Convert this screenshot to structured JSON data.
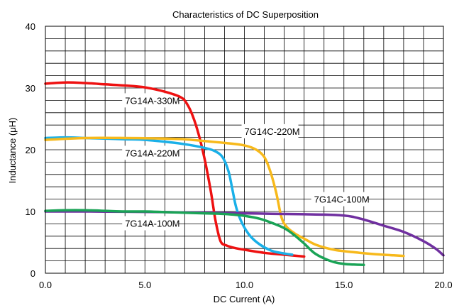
{
  "chart_data": {
    "type": "line",
    "title": "Characteristics of DC Superposition",
    "xlabel": "DC Current (A)",
    "ylabel": "Inductance (μH)",
    "xlim": [
      0,
      20
    ],
    "ylim": [
      0,
      40
    ],
    "grid": true,
    "legend": "none",
    "x_ticks": [
      {
        "value": 0,
        "label": "0.0"
      },
      {
        "value": 5,
        "label": "5.0"
      },
      {
        "value": 10,
        "label": "10.0"
      },
      {
        "value": 15,
        "label": "15.0"
      },
      {
        "value": 20,
        "label": "20.0"
      }
    ],
    "y_ticks": [
      {
        "value": 0,
        "label": "0"
      },
      {
        "value": 10,
        "label": "10"
      },
      {
        "value": 20,
        "label": "20"
      },
      {
        "value": 30,
        "label": "30"
      },
      {
        "value": 40,
        "label": "40"
      }
    ],
    "series": [
      {
        "name": "7G14A-330M",
        "color": "#ee1111",
        "points": [
          [
            0,
            30.7
          ],
          [
            1,
            30.9
          ],
          [
            2,
            30.8
          ],
          [
            3,
            30.6
          ],
          [
            4,
            30.4
          ],
          [
            5,
            30.1
          ],
          [
            6,
            29.4
          ],
          [
            6.8,
            28.5
          ],
          [
            7.1,
            27.5
          ],
          [
            7.4,
            25.5
          ],
          [
            7.7,
            22.5
          ],
          [
            8.0,
            18.5
          ],
          [
            8.3,
            13.5
          ],
          [
            8.55,
            8.5
          ],
          [
            8.8,
            5.2
          ],
          [
            9.1,
            4.5
          ],
          [
            9.5,
            4.1
          ],
          [
            10,
            3.8
          ],
          [
            11,
            3.3
          ],
          [
            12,
            3.0
          ],
          [
            13,
            2.7
          ]
        ],
        "label_value": [
          4.0,
          28.0
        ]
      },
      {
        "name": "7G14A-220M",
        "color": "#1ab0e8",
        "points": [
          [
            0,
            21.9
          ],
          [
            1,
            22.0
          ],
          [
            2,
            21.9
          ],
          [
            3,
            21.8
          ],
          [
            4,
            21.7
          ],
          [
            5,
            21.6
          ],
          [
            6,
            21.3
          ],
          [
            7,
            20.9
          ],
          [
            8,
            20.3
          ],
          [
            8.5,
            19.8
          ],
          [
            8.9,
            18.8
          ],
          [
            9.2,
            16.5
          ],
          [
            9.4,
            13.5
          ],
          [
            9.6,
            10.5
          ],
          [
            9.9,
            8.0
          ],
          [
            10.3,
            6.0
          ],
          [
            10.8,
            4.6
          ],
          [
            11.4,
            3.6
          ],
          [
            12,
            3.2
          ],
          [
            12.4,
            3.0
          ]
        ],
        "label_value": [
          4.0,
          19.5
        ]
      },
      {
        "name": "7G14C-220M",
        "color": "#f7b91b",
        "points": [
          [
            0,
            21.6
          ],
          [
            2,
            21.9
          ],
          [
            4,
            21.9
          ],
          [
            6,
            21.8
          ],
          [
            7,
            21.7
          ],
          [
            8,
            21.4
          ],
          [
            9,
            21.1
          ],
          [
            10,
            20.7
          ],
          [
            10.6,
            20.0
          ],
          [
            11.0,
            18.8
          ],
          [
            11.3,
            16.5
          ],
          [
            11.6,
            13.0
          ],
          [
            11.85,
            9.2
          ],
          [
            12.1,
            7.6
          ],
          [
            12.5,
            6.5
          ],
          [
            13,
            5.6
          ],
          [
            13.6,
            4.6
          ],
          [
            14.5,
            3.8
          ],
          [
            15.5,
            3.4
          ],
          [
            16.5,
            3.1
          ],
          [
            17.5,
            2.9
          ],
          [
            18,
            2.8
          ]
        ],
        "label_value": [
          10.0,
          23.0
        ]
      },
      {
        "name": "7G14C-100M",
        "color": "#7030a0",
        "points": [
          [
            0,
            10.0
          ],
          [
            2,
            10.0
          ],
          [
            4,
            9.95
          ],
          [
            6,
            9.9
          ],
          [
            8,
            9.8
          ],
          [
            10,
            9.7
          ],
          [
            12,
            9.6
          ],
          [
            13,
            9.55
          ],
          [
            14,
            9.5
          ],
          [
            15,
            9.35
          ],
          [
            15.5,
            9.1
          ],
          [
            16.2,
            8.5
          ],
          [
            17,
            7.7
          ],
          [
            18,
            6.7
          ],
          [
            19,
            5.2
          ],
          [
            19.6,
            4.0
          ],
          [
            20,
            2.9
          ]
        ],
        "label_value": [
          13.5,
          12.0
        ]
      },
      {
        "name": "7G14A-100M",
        "color": "#1aa356",
        "points": [
          [
            0,
            10.1
          ],
          [
            1,
            10.2
          ],
          [
            2,
            10.2
          ],
          [
            3,
            10.1
          ],
          [
            4,
            10.0
          ],
          [
            5,
            10.0
          ],
          [
            6,
            9.9
          ],
          [
            7,
            9.8
          ],
          [
            8,
            9.7
          ],
          [
            9,
            9.6
          ],
          [
            10,
            9.3
          ],
          [
            10.8,
            8.8
          ],
          [
            11.5,
            8.0
          ],
          [
            12,
            7.3
          ],
          [
            12.5,
            6.2
          ],
          [
            13,
            4.8
          ],
          [
            13.5,
            3.3
          ],
          [
            14,
            2.4
          ],
          [
            14.5,
            1.8
          ],
          [
            15,
            1.5
          ],
          [
            15.5,
            1.4
          ],
          [
            16,
            1.35
          ]
        ],
        "label_value": [
          4.0,
          8.1
        ]
      }
    ]
  }
}
